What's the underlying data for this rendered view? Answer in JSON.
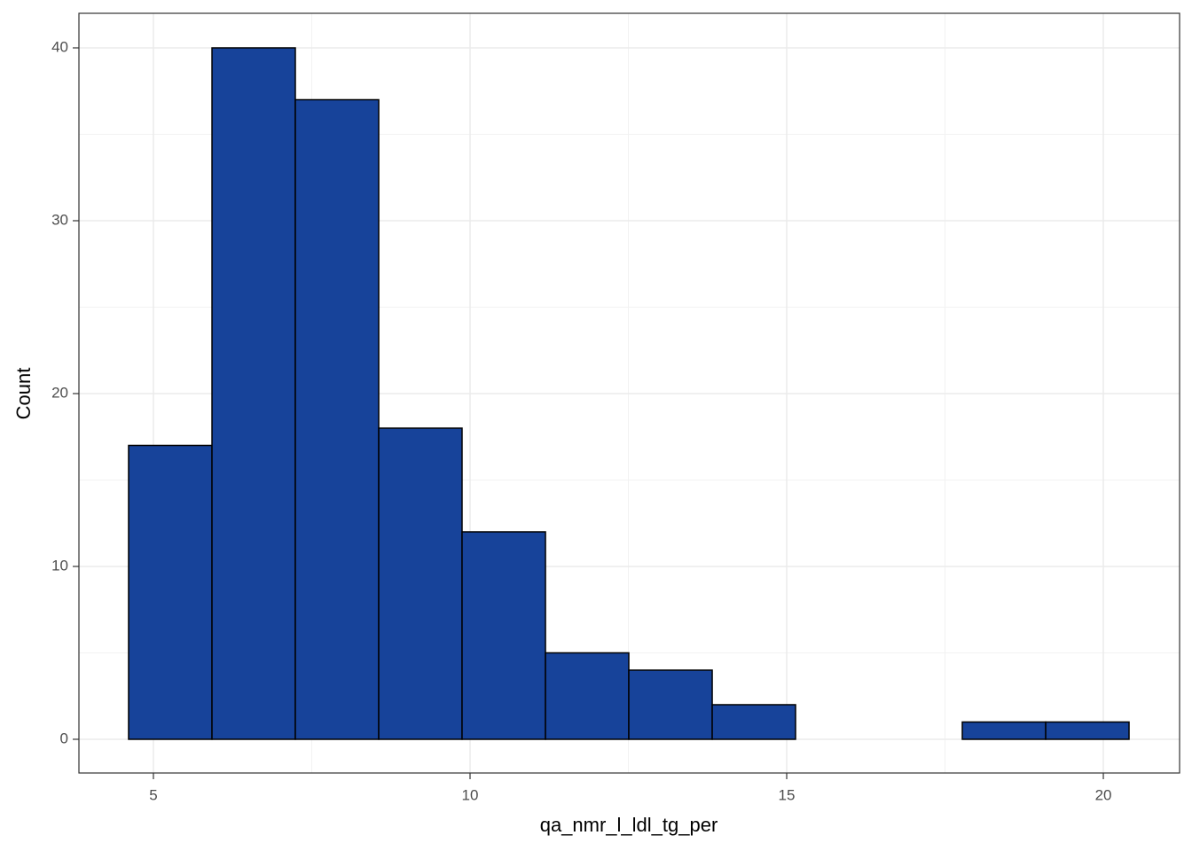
{
  "chart_data": {
    "type": "histogram",
    "xlabel": "qa_nmr_l_ldl_tg_per",
    "ylabel": "Count",
    "bins": [
      4.608,
      5.925,
      7.241,
      8.558,
      9.874,
      11.191,
      12.507,
      13.824,
      15.14,
      16.457,
      17.773,
      19.09,
      20.406
    ],
    "values": [
      17,
      40,
      37,
      18,
      12,
      5,
      4,
      2,
      0,
      0,
      1,
      1
    ],
    "color": "#17439a",
    "edgecolor": "#000000",
    "xlim": [
      3.824,
      21.204
    ],
    "xticks": [
      5,
      10,
      15,
      20
    ],
    "x_minor_ticks": [
      7.5,
      12.5,
      17.5
    ],
    "ylim": [
      -1.95,
      42
    ],
    "yticks": [
      0,
      10,
      20,
      30,
      40
    ],
    "y_minor_ticks": [
      5,
      15,
      25,
      35
    ],
    "grid": true
  }
}
